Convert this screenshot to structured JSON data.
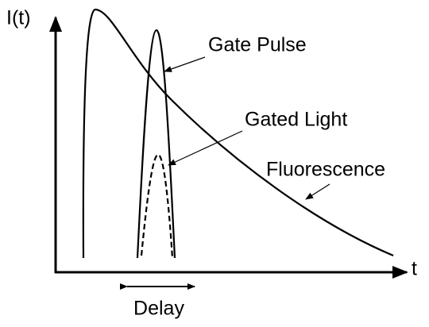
{
  "axes": {
    "y_label": "I(t)",
    "x_label": "t"
  },
  "labels": {
    "gate_pulse": "Gate Pulse",
    "gated_light": "Gated Light",
    "fluorescence": "Fluorescence",
    "delay": "Delay"
  }
}
